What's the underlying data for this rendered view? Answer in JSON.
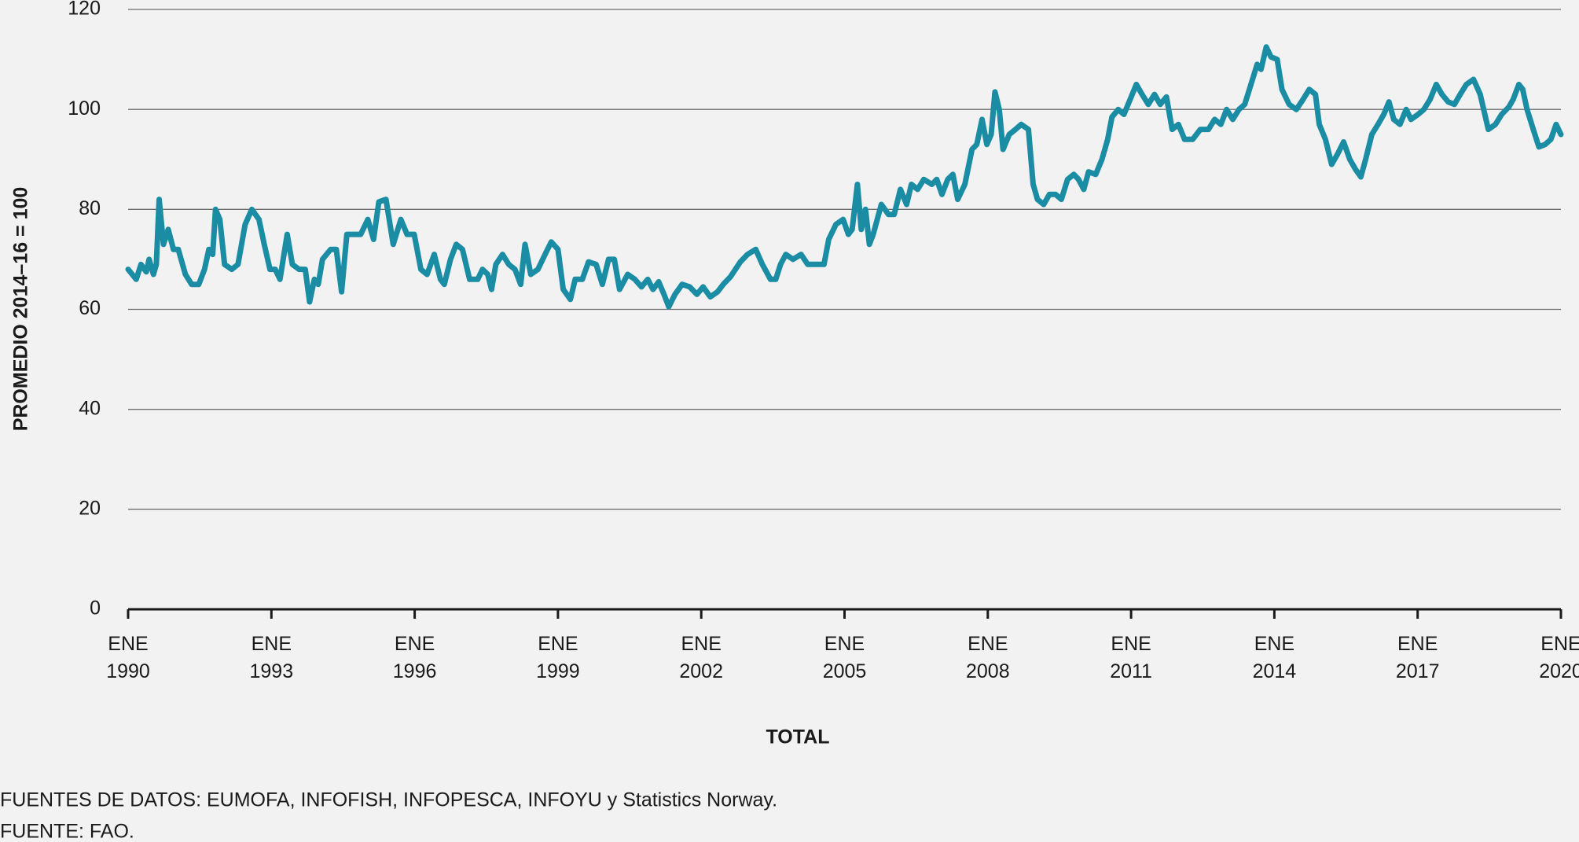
{
  "chart_data": {
    "type": "line",
    "y_label": "PROMEDIO 2014–16 = 100",
    "x_label": "TOTAL",
    "notes": [
      "FUENTES DE DATOS: EUMOFA, INFOFISH, INFOPESCA, INFOYU y Statistics Norway.",
      "FUENTE: FAO."
    ],
    "color": "#1a8ca3",
    "grid": true,
    "ylim": [
      0,
      120
    ],
    "yticks": [
      0,
      20,
      40,
      60,
      80,
      100,
      120
    ],
    "xlim": [
      1990,
      2020
    ],
    "xticks": [
      {
        "value": 1990,
        "label": "ENE\n1990"
      },
      {
        "value": 1993,
        "label": "ENE\n1993"
      },
      {
        "value": 1996,
        "label": "ENE\n1996"
      },
      {
        "value": 1999,
        "label": "ENE\n1999"
      },
      {
        "value": 2002,
        "label": "ENE\n2002"
      },
      {
        "value": 2005,
        "label": "ENE\n2005"
      },
      {
        "value": 2008,
        "label": "ENE\n2008"
      },
      {
        "value": 2011,
        "label": "ENE\n2011"
      },
      {
        "value": 2014,
        "label": "ENE\n2014"
      },
      {
        "value": 2017,
        "label": "ENE\n2017"
      },
      {
        "value": 2020,
        "label": "ENE\n2020"
      }
    ],
    "x": [
      1990.0,
      1990.17,
      1990.27,
      1990.38,
      1990.44,
      1990.53,
      1990.59,
      1990.65,
      1990.74,
      1990.84,
      1990.95,
      1991.05,
      1991.2,
      1991.33,
      1991.48,
      1991.6,
      1991.69,
      1991.77,
      1991.83,
      1991.92,
      1992.02,
      1992.17,
      1992.3,
      1992.45,
      1992.59,
      1992.74,
      1992.85,
      1992.97,
      1993.08,
      1993.18,
      1993.33,
      1993.44,
      1993.58,
      1993.71,
      1993.8,
      1993.9,
      1993.98,
      1994.07,
      1994.24,
      1994.36,
      1994.47,
      1994.58,
      1994.74,
      1994.87,
      1995.02,
      1995.14,
      1995.25,
      1995.4,
      1995.55,
      1995.71,
      1995.84,
      1995.99,
      1996.13,
      1996.26,
      1996.41,
      1996.54,
      1996.62,
      1996.75,
      1996.87,
      1997.0,
      1997.15,
      1997.32,
      1997.42,
      1997.53,
      1997.61,
      1997.7,
      1997.84,
      1997.97,
      1998.1,
      1998.22,
      1998.31,
      1998.43,
      1998.58,
      1998.73,
      1998.86,
      1999.0,
      1999.11,
      1999.26,
      1999.36,
      1999.51,
      1999.64,
      1999.8,
      1999.93,
      2000.06,
      2000.18,
      2000.29,
      2000.46,
      2000.61,
      2000.75,
      2000.88,
      2000.99,
      2001.11,
      2001.22,
      2001.32,
      2001.45,
      2001.6,
      2001.76,
      2001.91,
      2002.04,
      2002.19,
      2002.34,
      2002.46,
      2002.61,
      2002.82,
      2002.97,
      2003.14,
      2003.28,
      2003.45,
      2003.56,
      2003.66,
      2003.77,
      2003.92,
      2004.09,
      2004.23,
      2004.36,
      2004.57,
      2004.67,
      2004.82,
      2004.97,
      2005.08,
      2005.16,
      2005.27,
      2005.35,
      2005.44,
      2005.52,
      2005.6,
      2005.77,
      2005.92,
      2006.04,
      2006.17,
      2006.3,
      2006.4,
      2006.53,
      2006.66,
      2006.83,
      2006.93,
      2007.04,
      2007.16,
      2007.27,
      2007.37,
      2007.52,
      2007.67,
      2007.77,
      2007.88,
      2007.98,
      2008.07,
      2008.15,
      2008.24,
      2008.32,
      2008.45,
      2008.58,
      2008.7,
      2008.85,
      2008.95,
      2009.04,
      2009.17,
      2009.29,
      2009.42,
      2009.54,
      2009.67,
      2009.8,
      2009.9,
      2010.01,
      2010.11,
      2010.26,
      2010.39,
      2010.51,
      2010.6,
      2010.73,
      2010.85,
      2010.98,
      2011.11,
      2011.23,
      2011.36,
      2011.49,
      2011.61,
      2011.74,
      2011.86,
      2011.99,
      2012.12,
      2012.29,
      2012.45,
      2012.62,
      2012.75,
      2012.88,
      2013.0,
      2013.13,
      2013.26,
      2013.38,
      2013.51,
      2013.64,
      2013.72,
      2013.83,
      2013.93,
      2014.06,
      2014.16,
      2014.31,
      2014.46,
      2014.6,
      2014.73,
      2014.86,
      2014.94,
      2015.07,
      2015.2,
      2015.32,
      2015.45,
      2015.58,
      2015.7,
      2015.81,
      2015.91,
      2016.04,
      2016.17,
      2016.29,
      2016.4,
      2016.5,
      2016.63,
      2016.76,
      2016.86,
      2017.01,
      2017.13,
      2017.26,
      2017.39,
      2017.51,
      2017.64,
      2017.77,
      2017.89,
      2018.02,
      2018.17,
      2018.31,
      2018.48,
      2018.63,
      2018.76,
      2018.91,
      2019.0,
      2019.12,
      2019.2,
      2019.29,
      2019.42,
      2019.54,
      2019.67,
      2019.79,
      2019.9,
      2020.0
    ],
    "values": [
      68,
      66,
      69,
      67.5,
      70,
      67,
      69,
      82,
      73,
      76,
      72,
      72,
      67,
      65,
      65,
      68,
      72,
      71,
      80,
      78,
      69,
      68,
      69,
      77,
      80,
      78,
      73,
      68,
      68,
      66,
      75,
      69,
      68,
      68,
      61.5,
      66,
      65,
      70,
      72,
      72,
      63.5,
      75,
      75,
      75,
      78,
      74,
      81.5,
      82,
      73,
      78,
      75,
      75,
      68,
      67,
      71,
      66,
      65,
      70,
      73,
      72,
      66,
      66,
      68,
      67,
      64,
      69,
      71,
      69,
      68,
      65,
      73,
      67,
      68,
      71,
      73.5,
      72,
      64,
      62,
      66,
      66,
      69.5,
      69,
      65,
      70,
      70,
      64,
      67,
      66,
      64.5,
      66,
      64,
      65.5,
      63,
      60.5,
      63,
      65,
      64.5,
      63,
      64.5,
      62.5,
      63.5,
      65,
      66.5,
      69.5,
      71,
      72,
      69,
      66,
      66,
      69,
      71,
      70,
      71,
      69,
      69,
      69,
      74,
      77,
      78,
      75,
      76,
      85,
      76,
      80,
      73,
      75,
      81,
      79,
      79,
      84,
      81,
      85,
      84,
      86,
      85,
      86,
      83,
      86,
      87,
      82,
      85,
      92,
      93,
      98,
      93,
      95,
      103.5,
      100,
      92,
      95,
      96,
      97,
      96,
      85,
      82,
      81,
      83,
      83,
      82,
      86,
      87,
      86,
      84,
      87.5,
      87,
      90,
      94,
      98.5,
      100,
      99,
      102,
      105,
      103,
      101,
      103,
      101,
      102.5,
      96,
      97,
      94,
      94,
      96,
      96,
      98,
      97,
      100,
      98,
      100,
      101,
      105,
      109,
      108,
      112.5,
      110.5,
      110,
      104,
      101,
      100,
      102,
      104,
      103,
      97,
      94,
      89,
      91,
      93.5,
      90,
      88,
      86.5,
      90,
      95,
      97,
      99,
      101.5,
      98,
      97,
      100,
      98,
      99,
      100,
      102,
      105,
      103,
      101.5,
      101,
      103,
      105,
      106,
      103,
      96,
      97,
      99,
      100.5,
      102,
      105,
      104,
      100,
      96,
      92.5,
      93,
      94,
      97,
      95
    ]
  }
}
